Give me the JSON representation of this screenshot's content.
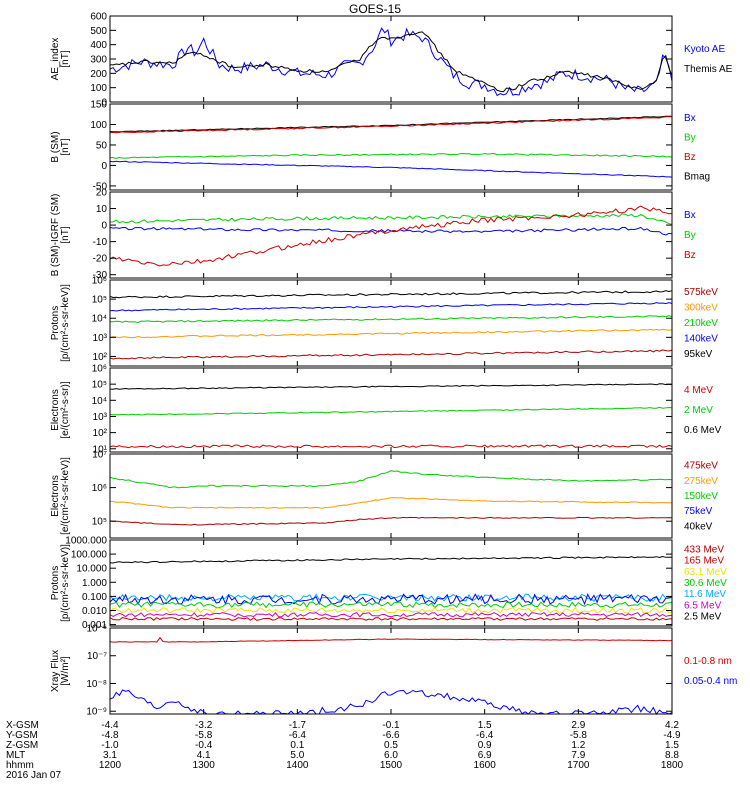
{
  "title": "GOES-15",
  "colors": {
    "black": "#000000",
    "blue": "#0000ff",
    "red": "#cc0000",
    "green": "#00cc00",
    "orange": "#ff9900",
    "yellow": "#e6e600",
    "cyan": "#00aaff",
    "magenta": "#cc00cc",
    "darkred": "#aa0000"
  },
  "time_axis": {
    "hhmm": [
      "1200",
      "1300",
      "1400",
      "1500",
      "1600",
      "1700",
      "1800"
    ],
    "rows": [
      {
        "label": "X-GSM",
        "values": [
          "-4.4",
          "-3.2",
          "-1.7",
          "-0.1",
          "1.5",
          "2.9",
          "4.2"
        ]
      },
      {
        "label": "Y-GSM",
        "values": [
          "-4.8",
          "-5.8",
          "-6.4",
          "-6.6",
          "-6.4",
          "-5.8",
          "-4.9"
        ]
      },
      {
        "label": "Z-GSM",
        "values": [
          "-1.0",
          "-0.4",
          "0.1",
          "0.5",
          "0.9",
          "1.2",
          "1.5"
        ]
      },
      {
        "label": "MLT",
        "values": [
          "3.1",
          "4.1",
          "5.0",
          "6.0",
          "6.9",
          "7.9",
          "8.8"
        ]
      },
      {
        "label": "hhmm",
        "values": [
          "1200",
          "1300",
          "1400",
          "1500",
          "1600",
          "1700",
          "1800"
        ]
      }
    ],
    "date": "2016 Jan 07"
  },
  "chart_data": [
    {
      "type": "line",
      "ylabel": "AE_index\n[nT]",
      "ylim": [
        0,
        600
      ],
      "yscale": "linear",
      "yticks": [
        0,
        100,
        200,
        300,
        400,
        500,
        600
      ],
      "legend": [
        {
          "name": "Kyoto AE",
          "color": "#0000ff"
        },
        {
          "name": "Themis AE",
          "color": "#000000"
        }
      ],
      "series": [
        {
          "name": "Kyoto AE",
          "color": "#0000ff",
          "noise": 40,
          "x": [
            1200,
            1220,
            1240,
            1250,
            1255,
            1300,
            1310,
            1320,
            1340,
            1400,
            1420,
            1430,
            1440,
            1450,
            1455,
            1500,
            1510,
            1520,
            1530,
            1540,
            1550,
            1600,
            1610,
            1620,
            1630,
            1640,
            1650,
            1700,
            1710,
            1720,
            1730,
            1740,
            1750,
            1755,
            1800
          ],
          "y": [
            230,
            280,
            260,
            380,
            340,
            430,
            260,
            230,
            260,
            200,
            190,
            250,
            270,
            400,
            520,
            430,
            470,
            450,
            320,
            190,
            130,
            120,
            70,
            80,
            120,
            140,
            200,
            190,
            170,
            150,
            90,
            70,
            120,
            330,
            150
          ]
        },
        {
          "name": "Themis AE",
          "color": "#000000",
          "noise": 12,
          "x": [
            1200,
            1220,
            1240,
            1250,
            1300,
            1310,
            1320,
            1340,
            1400,
            1420,
            1430,
            1440,
            1450,
            1455,
            1500,
            1510,
            1520,
            1530,
            1540,
            1550,
            1600,
            1610,
            1620,
            1630,
            1640,
            1650,
            1700,
            1710,
            1720,
            1730,
            1740,
            1750,
            1755,
            1800
          ],
          "y": [
            250,
            280,
            270,
            340,
            330,
            280,
            240,
            260,
            220,
            210,
            260,
            300,
            430,
            460,
            440,
            470,
            500,
            360,
            230,
            170,
            130,
            80,
            100,
            150,
            170,
            210,
            200,
            180,
            160,
            110,
            100,
            140,
            350,
            180
          ]
        }
      ]
    },
    {
      "type": "line",
      "ylabel": "B (SM)\n[nT]",
      "ylim": [
        -60,
        150
      ],
      "yscale": "linear",
      "yticks": [
        -50,
        0,
        50,
        100,
        150
      ],
      "legend": [
        {
          "name": "Bx",
          "color": "#0000ff"
        },
        {
          "name": "By",
          "color": "#00cc00"
        },
        {
          "name": "Bz",
          "color": "#cc0000"
        },
        {
          "name": "Bmag",
          "color": "#000000"
        }
      ],
      "series": [
        {
          "name": "Bmag",
          "color": "#000000",
          "noise": 1,
          "x": [
            1200,
            1500,
            1800
          ],
          "y": [
            82,
            98,
            120
          ]
        },
        {
          "name": "Bz",
          "color": "#cc0000",
          "noise": 1.5,
          "x": [
            1200,
            1500,
            1800
          ],
          "y": [
            80,
            96,
            118
          ]
        },
        {
          "name": "By",
          "color": "#00cc00",
          "noise": 1.5,
          "x": [
            1200,
            1400,
            1600,
            1800
          ],
          "y": [
            18,
            25,
            28,
            22
          ]
        },
        {
          "name": "Bx",
          "color": "#0000ff",
          "noise": 1,
          "x": [
            1200,
            1500,
            1800
          ],
          "y": [
            10,
            -5,
            -28
          ]
        }
      ]
    },
    {
      "type": "line",
      "ylabel": "B (SM)-IGRF (SM)\n[nT]",
      "ylim": [
        -32,
        20
      ],
      "yscale": "linear",
      "yticks": [
        -30,
        -20,
        -10,
        0,
        10,
        20
      ],
      "legend": [
        {
          "name": "Bx",
          "color": "#0000ff"
        },
        {
          "name": "By",
          "color": "#00cc00"
        },
        {
          "name": "Bz",
          "color": "#cc0000"
        }
      ],
      "series": [
        {
          "name": "By",
          "color": "#00cc00",
          "noise": 1,
          "x": [
            1200,
            1400,
            1600,
            1740,
            1800
          ],
          "y": [
            2,
            4,
            5,
            6,
            0
          ]
        },
        {
          "name": "Bx",
          "color": "#0000ff",
          "noise": 0.8,
          "x": [
            1200,
            1400,
            1600,
            1740,
            1800
          ],
          "y": [
            -2,
            -3,
            -4,
            -2,
            -6
          ]
        },
        {
          "name": "Bz",
          "color": "#cc0000",
          "noise": 1.5,
          "x": [
            1200,
            1230,
            1300,
            1400,
            1500,
            1600,
            1700,
            1740,
            1800
          ],
          "y": [
            -20,
            -24,
            -22,
            -12,
            -3,
            3,
            6,
            10,
            8
          ]
        }
      ]
    },
    {
      "type": "line",
      "ylabel": "Protons\n[p/(cm²-s-sr-keV)]",
      "ylim": [
        1.5,
        6
      ],
      "yscale": "log",
      "yticks": [
        2,
        3,
        4,
        5,
        6
      ],
      "tick_labels": [
        "10²",
        "10³",
        "10⁴",
        "10⁵",
        "10⁶"
      ],
      "legend": [
        {
          "name": "575keV",
          "color": "#aa0000"
        },
        {
          "name": "300keV",
          "color": "#ff9900"
        },
        {
          "name": "210keV",
          "color": "#00cc00"
        },
        {
          "name": "140keV",
          "color": "#0000ff"
        },
        {
          "name": "95keV",
          "color": "#000000"
        }
      ],
      "series": [
        {
          "name": "95keV",
          "color": "#000000",
          "noise": 0.05,
          "x": [
            1200,
            1800
          ],
          "y": [
            5.1,
            5.4
          ]
        },
        {
          "name": "140keV",
          "color": "#0000ff",
          "noise": 0.04,
          "x": [
            1200,
            1800
          ],
          "y": [
            4.4,
            4.8
          ]
        },
        {
          "name": "210keV",
          "color": "#00cc00",
          "noise": 0.04,
          "x": [
            1200,
            1800
          ],
          "y": [
            3.8,
            4.1
          ]
        },
        {
          "name": "300keV",
          "color": "#ff9900",
          "noise": 0.04,
          "x": [
            1200,
            1800
          ],
          "y": [
            3.0,
            3.4
          ]
        },
        {
          "name": "575keV",
          "color": "#aa0000",
          "noise": 0.05,
          "x": [
            1200,
            1800
          ],
          "y": [
            1.9,
            2.3
          ]
        }
      ]
    },
    {
      "type": "line",
      "ylabel": "Electrons\n[e/(cm²-s-sr)]",
      "ylim": [
        0.8,
        6
      ],
      "yscale": "log",
      "yticks": [
        1,
        2,
        3,
        4,
        5,
        6
      ],
      "tick_labels": [
        "10¹",
        "10²",
        "10³",
        "10⁴",
        "10⁵",
        "10⁶"
      ],
      "legend": [
        {
          "name": "4 MeV",
          "color": "#cc0000"
        },
        {
          "name": "2 MeV",
          "color": "#00cc00"
        },
        {
          "name": "0.6 MeV",
          "color": "#000000"
        }
      ],
      "series": [
        {
          "name": "0.6 MeV",
          "color": "#000000",
          "noise": 0.03,
          "x": [
            1200,
            1500,
            1800
          ],
          "y": [
            4.7,
            4.85,
            5.0
          ]
        },
        {
          "name": "2 MeV",
          "color": "#00cc00",
          "noise": 0.03,
          "x": [
            1200,
            1500,
            1800
          ],
          "y": [
            3.1,
            3.3,
            3.55
          ]
        },
        {
          "name": "4 MeV",
          "color": "#cc0000",
          "noise": 0.08,
          "x": [
            1200,
            1800
          ],
          "y": [
            1.15,
            1.15
          ]
        }
      ]
    },
    {
      "type": "line",
      "ylabel": "Electrons\n[e/(cm²-s-sr-keV)]",
      "ylim": [
        4.5,
        7
      ],
      "yscale": "log",
      "yticks": [
        5,
        6,
        7
      ],
      "tick_labels": [
        "10⁵",
        "10⁶",
        "10⁷"
      ],
      "legend": [
        {
          "name": "475keV",
          "color": "#aa0000"
        },
        {
          "name": "275keV",
          "color": "#ff9900"
        },
        {
          "name": "150keV",
          "color": "#00cc00"
        },
        {
          "name": "75keV",
          "color": "#0000ff"
        },
        {
          "name": "40keV",
          "color": "#000000"
        }
      ],
      "series": [
        {
          "name": "40keV",
          "color": "#00cc00",
          "noise": 0.02,
          "x": [
            1200,
            1240,
            1300,
            1420,
            1440,
            1500,
            1520,
            1600,
            1700,
            1800
          ],
          "y": [
            6.3,
            6.0,
            6.05,
            6.05,
            6.2,
            6.5,
            6.4,
            6.3,
            6.2,
            6.25
          ]
        },
        {
          "name": "75keV",
          "color": "#ff9900",
          "noise": 0.015,
          "x": [
            1200,
            1240,
            1300,
            1420,
            1440,
            1500,
            1600,
            1800
          ],
          "y": [
            5.6,
            5.4,
            5.4,
            5.4,
            5.55,
            5.7,
            5.6,
            5.55
          ]
        },
        {
          "name": "150keV",
          "color": "#aa0000",
          "noise": 0.015,
          "x": [
            1200,
            1240,
            1300,
            1420,
            1440,
            1500,
            1600,
            1800
          ],
          "y": [
            5.0,
            4.9,
            4.9,
            4.95,
            5.05,
            5.1,
            5.1,
            5.1
          ]
        }
      ]
    },
    {
      "type": "line",
      "ylabel": "Protons\n[p/(cm²-s-sr-keV)]",
      "ylim": [
        -3.1,
        3
      ],
      "yscale": "log",
      "yticks": [
        -3,
        -2,
        -1,
        0,
        1,
        2,
        3
      ],
      "tick_labels": [
        "0.001",
        "0.010",
        "0.100",
        "1.000",
        "10.000",
        "100.000",
        "1000.000"
      ],
      "legend": [
        {
          "name": "433 MeV",
          "color": "#aa0000"
        },
        {
          "name": "165 MeV",
          "color": "#cc0000"
        },
        {
          "name": "63.1 MeV",
          "color": "#e6e600"
        },
        {
          "name": "30.6 MeV",
          "color": "#00cc00"
        },
        {
          "name": "11.6 MeV",
          "color": "#00aaff"
        },
        {
          "name": "6.5 MeV",
          "color": "#cc00cc"
        },
        {
          "name": "2.5 MeV",
          "color": "#000000"
        }
      ],
      "series": [
        {
          "name": "2.5 MeV",
          "color": "#000000",
          "noise": 0.05,
          "x": [
            1200,
            1500,
            1800
          ],
          "y": [
            1.4,
            1.65,
            1.8
          ]
        },
        {
          "name": "11.6 MeV",
          "color": "#00aaff",
          "noise": 0.25,
          "x": [
            1200,
            1800
          ],
          "y": [
            -1.1,
            -1.1
          ]
        },
        {
          "name": "6.5 MeV",
          "color": "#0000ff",
          "noise": 0.35,
          "x": [
            1200,
            1800
          ],
          "y": [
            -1.2,
            -1.2
          ]
        },
        {
          "name": "30.6 MeV",
          "color": "#00cc00",
          "noise": 0.2,
          "x": [
            1200,
            1800
          ],
          "y": [
            -1.6,
            -1.6
          ]
        },
        {
          "name": "63.1 MeV",
          "color": "#e6e600",
          "noise": 0.2,
          "x": [
            1200,
            1800
          ],
          "y": [
            -2.0,
            -2.0
          ]
        },
        {
          "name": "165 MeV",
          "color": "#cc00cc",
          "noise": 0.15,
          "x": [
            1200,
            1800
          ],
          "y": [
            -2.3,
            -2.3
          ]
        },
        {
          "name": "433 MeV",
          "color": "#cc0000",
          "noise": 0.1,
          "x": [
            1200,
            1800
          ],
          "y": [
            -2.6,
            -2.6
          ]
        }
      ]
    },
    {
      "type": "line",
      "ylabel": "Xray Flux\n[W/m²]",
      "ylim": [
        -9.1,
        -6
      ],
      "yscale": "log",
      "yticks": [
        -9,
        -8,
        -7,
        -6
      ],
      "tick_labels": [
        "10⁻⁹",
        "10⁻⁸",
        "10⁻⁷",
        "10⁻⁶"
      ],
      "legend": [
        {
          "name": "0.1-0.8 nm",
          "color": "#cc0000"
        },
        {
          "name": "0.05-0.4 nm",
          "color": "#0000ff"
        }
      ],
      "series": [
        {
          "name": "0.1-0.8 nm",
          "color": "#cc0000",
          "noise": 0.01,
          "x": [
            1200,
            1230,
            1232,
            1234,
            1300,
            1500,
            1800
          ],
          "y": [
            -6.5,
            -6.5,
            -6.35,
            -6.5,
            -6.5,
            -6.4,
            -6.45
          ]
        },
        {
          "name": "0.05-0.4 nm",
          "color": "#0000ff",
          "noise": 0.12,
          "x": [
            1200,
            1210,
            1230,
            1240,
            1300,
            1320,
            1400,
            1440,
            1500,
            1530,
            1600,
            1630,
            1700,
            1740,
            1800
          ],
          "y": [
            -8.5,
            -8.3,
            -8.9,
            -8.6,
            -9.1,
            -9.1,
            -9.1,
            -8.8,
            -8.3,
            -8.4,
            -8.7,
            -9.1,
            -9.1,
            -8.9,
            -9.1
          ]
        }
      ]
    }
  ]
}
